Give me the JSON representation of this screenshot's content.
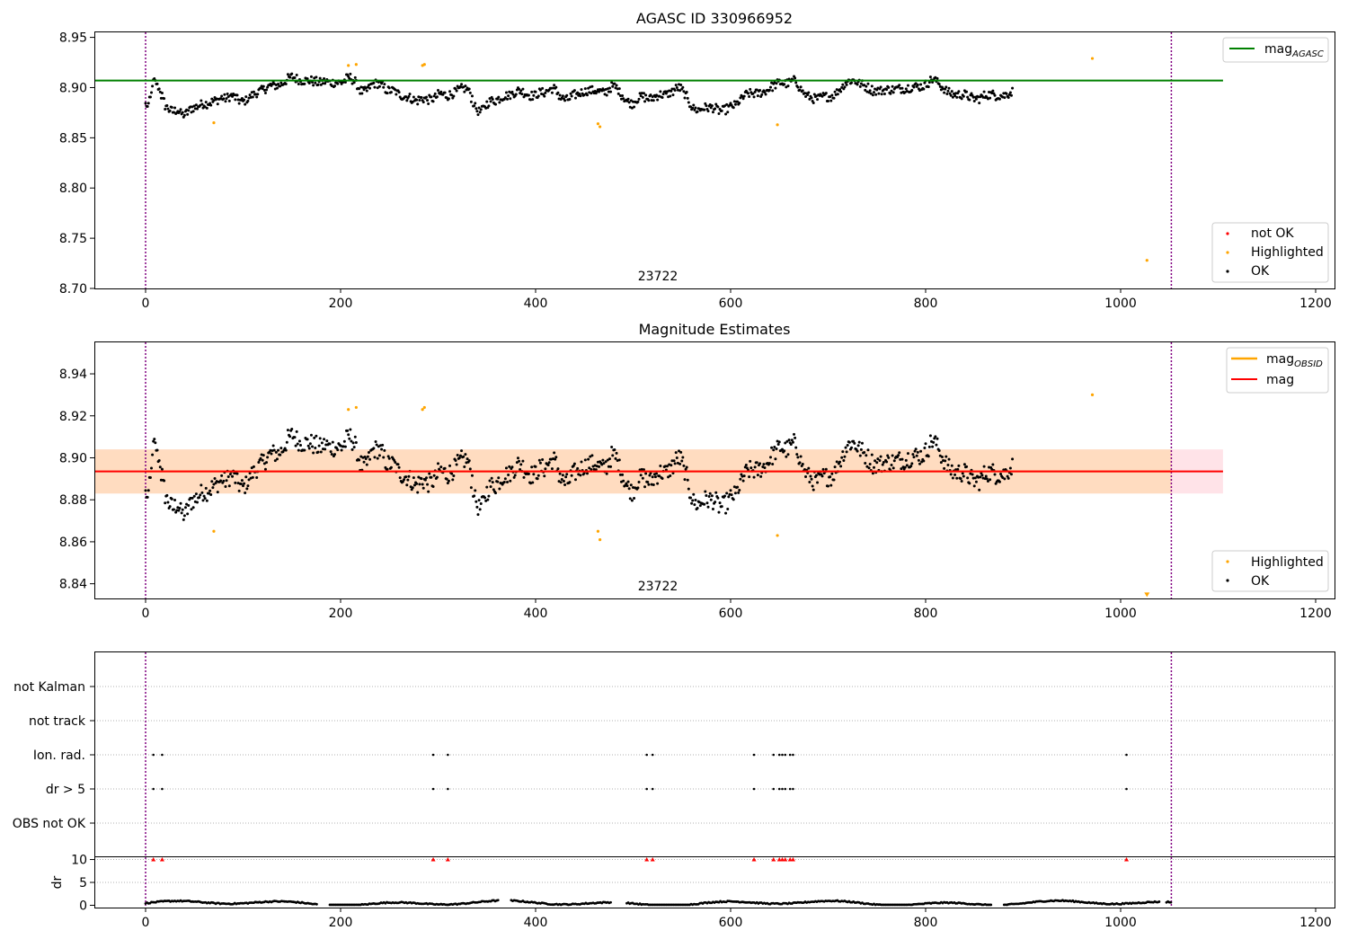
{
  "chart_data": [
    {
      "type": "scatter",
      "title": "AGASC ID 330966952",
      "xlim": [
        -53,
        1100
      ],
      "ylim": [
        8.7,
        8.955
      ],
      "x_ticks": [
        0,
        200,
        400,
        600,
        800,
        1000,
        1200
      ],
      "y_ticks": [
        8.7,
        8.75,
        8.8,
        8.85,
        8.9,
        8.95
      ],
      "x_tick_labels": [
        "0",
        "200",
        "400",
        "600",
        "800",
        "1000",
        "1200"
      ],
      "y_tick_labels": [
        "8.70",
        "8.75",
        "8.80",
        "8.85",
        "8.90",
        "8.95"
      ],
      "obsid_label": "23722",
      "obsid_label_x": 525,
      "vlines_x": [
        0,
        1052
      ],
      "hline": {
        "name": "mag_AGASC",
        "y": 8.907,
        "x_range": [
          -53,
          1105
        ],
        "color": "#008000"
      },
      "legend_top": [
        {
          "label": "mag",
          "sub": "AGASC",
          "color": "#008000"
        }
      ],
      "legend_bottom": [
        {
          "label": "not OK",
          "color": "#ff0000"
        },
        {
          "label": "Highlighted",
          "color": "#ffa500"
        },
        {
          "label": "OK",
          "color": "#000000"
        }
      ],
      "ok_series": {
        "name": "OK",
        "x_start": 0,
        "x_step": 2,
        "y": [
          8.883,
          8.88,
          8.889,
          8.898,
          8.906,
          8.905,
          8.901,
          8.898,
          8.892,
          8.886,
          8.882,
          8.88,
          8.878,
          8.877,
          8.876,
          8.877,
          8.878,
          8.876,
          8.874,
          8.873,
          8.873,
          8.875,
          8.877,
          8.879,
          8.88,
          8.88,
          8.881,
          8.882,
          8.883,
          8.884,
          8.884,
          8.884,
          8.885,
          8.885,
          8.886,
          8.887,
          8.887,
          8.888,
          8.889,
          8.89,
          8.889,
          8.889,
          8.89,
          8.891,
          8.892,
          8.891,
          8.89,
          8.888,
          8.887,
          8.886,
          8.886,
          8.887,
          8.889,
          8.89,
          8.892,
          8.893,
          8.894,
          8.895,
          8.896,
          8.897,
          8.898,
          8.899,
          8.9,
          8.901,
          8.902,
          8.902,
          8.902,
          8.902,
          8.902,
          8.903,
          8.904,
          8.906,
          8.907,
          8.909,
          8.91,
          8.911,
          8.91,
          8.909,
          8.908,
          8.907,
          8.907,
          8.907,
          8.907,
          8.907,
          8.907,
          8.907,
          8.906,
          8.906,
          8.905,
          8.905,
          8.905,
          8.906,
          8.906,
          8.906,
          8.905,
          8.905,
          8.905,
          8.905,
          8.905,
          8.905,
          8.905,
          8.906,
          8.907,
          8.909,
          8.91,
          8.91,
          8.908,
          8.906,
          8.903,
          8.9,
          8.897,
          8.896,
          8.896,
          8.897,
          8.899,
          8.901,
          8.903,
          8.904,
          8.904,
          8.904,
          8.903,
          8.902,
          8.9,
          8.898,
          8.897,
          8.897,
          8.897,
          8.897,
          8.896,
          8.894,
          8.893,
          8.892,
          8.891,
          8.891,
          8.891,
          8.89,
          8.889,
          8.888,
          8.887,
          8.887,
          8.888,
          8.889,
          8.889,
          8.889,
          8.888,
          8.888,
          8.888,
          8.889,
          8.89,
          8.891,
          8.893,
          8.894,
          8.893,
          8.893,
          8.892,
          8.892,
          8.893,
          8.894,
          8.895,
          8.896,
          8.897,
          8.898,
          8.899,
          8.899,
          8.899,
          8.898,
          8.895,
          8.89,
          8.885,
          8.88,
          8.877,
          8.876,
          8.877,
          8.879,
          8.882,
          8.884,
          8.886,
          8.887,
          8.887,
          8.887,
          8.888,
          8.889,
          8.89,
          8.891,
          8.892,
          8.892,
          8.892,
          8.893,
          8.894,
          8.895,
          8.896,
          8.897,
          8.897,
          8.896,
          8.895,
          8.894,
          8.893,
          8.892,
          8.892,
          8.892,
          8.893,
          8.894,
          8.895,
          8.895,
          8.895,
          8.896,
          8.897,
          8.898,
          8.899,
          8.899,
          8.897,
          8.895,
          8.892,
          8.89,
          8.889,
          8.888,
          8.888,
          8.889,
          8.891,
          8.892,
          8.893,
          8.893,
          8.894,
          8.895,
          8.896,
          8.896,
          8.897,
          8.897,
          8.897,
          8.897,
          8.897,
          8.897,
          8.896,
          8.896,
          8.895,
          8.895,
          8.896,
          8.898,
          8.9,
          8.901,
          8.901,
          8.9,
          8.898,
          8.895,
          8.893,
          8.89,
          8.888,
          8.886,
          8.885,
          8.884,
          8.885,
          8.887,
          8.889,
          8.89,
          8.891,
          8.891,
          8.89,
          8.889,
          8.889,
          8.889,
          8.89,
          8.891,
          8.892,
          8.893,
          8.893,
          8.893,
          8.893,
          8.893,
          8.894,
          8.895,
          8.896,
          8.898,
          8.899,
          8.9,
          8.899,
          8.897,
          8.894,
          8.891,
          8.887,
          8.884,
          8.881,
          8.879,
          8.878,
          8.878,
          8.878,
          8.879,
          8.88,
          8.88,
          8.88,
          8.88,
          8.88,
          8.88,
          8.879,
          8.878,
          8.877,
          8.877,
          8.877,
          8.878,
          8.879,
          8.88,
          8.881,
          8.882,
          8.882,
          8.884,
          8.886,
          8.888,
          8.89,
          8.892,
          8.893,
          8.894,
          8.894,
          8.894,
          8.894,
          8.894,
          8.894,
          8.895,
          8.895,
          8.896,
          8.897,
          8.898,
          8.9,
          8.901,
          8.902,
          8.903,
          8.904,
          8.905,
          8.905,
          8.904,
          8.904,
          8.904,
          8.905,
          8.906,
          8.907,
          8.906,
          8.904,
          8.901,
          8.898,
          8.895,
          8.893,
          8.892,
          8.891,
          8.89,
          8.889,
          8.889,
          8.889,
          8.889,
          8.89,
          8.891,
          8.891,
          8.891,
          8.891,
          8.891,
          8.892,
          8.893,
          8.895,
          8.897,
          8.899,
          8.901,
          8.903,
          8.905,
          8.906,
          8.907,
          8.907,
          8.907,
          8.906,
          8.905,
          8.904,
          8.903,
          8.902,
          8.901,
          8.9,
          8.899,
          8.898,
          8.897,
          8.897,
          8.897,
          8.897,
          8.897,
          8.897,
          8.898,
          8.898,
          8.898,
          8.898,
          8.898,
          8.898,
          8.899,
          8.899,
          8.899,
          8.899,
          8.899,
          8.899,
          8.9,
          8.9,
          8.901,
          8.901,
          8.901,
          8.901,
          8.901,
          8.901,
          8.902,
          8.903,
          8.905,
          8.907,
          8.908,
          8.908,
          8.907,
          8.905,
          8.903,
          8.901,
          8.899,
          8.897,
          8.896,
          8.895,
          8.894,
          8.893,
          8.893,
          8.893,
          8.893,
          8.893,
          8.893,
          8.893,
          8.892,
          8.891,
          8.89,
          8.889,
          8.889,
          8.889,
          8.889,
          8.89,
          8.891,
          8.892,
          8.893,
          8.893,
          8.893,
          8.893,
          8.893,
          8.892,
          8.892,
          8.892,
          8.892,
          8.892,
          8.893,
          8.894,
          8.895,
          8.896
        ],
        "jitter": 0.0045,
        "color": "#000000"
      },
      "highlighted": {
        "name": "Highlighted",
        "x": [
          70,
          208,
          216,
          284,
          286,
          464,
          466,
          648,
          971,
          1027
        ],
        "y": [
          8.865,
          8.922,
          8.923,
          8.922,
          8.923,
          8.864,
          8.861,
          8.863,
          8.929,
          8.728
        ],
        "color": "#ffa500"
      },
      "not_ok": {
        "name": "not OK",
        "x": [],
        "y": [],
        "color": "#ff0000"
      }
    },
    {
      "type": "scatter",
      "title": "Magnitude Estimates",
      "xlim": [
        -53,
        1100
      ],
      "ylim": [
        8.833,
        8.955
      ],
      "x_ticks": [
        0,
        200,
        400,
        600,
        800,
        1000,
        1200
      ],
      "y_ticks": [
        8.84,
        8.86,
        8.88,
        8.9,
        8.92,
        8.94
      ],
      "x_tick_labels": [
        "0",
        "200",
        "400",
        "600",
        "800",
        "1000",
        "1200"
      ],
      "y_tick_labels": [
        "8.84",
        "8.86",
        "8.88",
        "8.90",
        "8.92",
        "8.94"
      ],
      "obsid_label": "23722",
      "obsid_label_x": 525,
      "vlines_x": [
        0,
        1052
      ],
      "mag_line": {
        "name": "mag",
        "y": 8.8935,
        "color": "#ff0000"
      },
      "mag_obsid_line": {
        "name": "mag_OBSID",
        "y": 8.8935,
        "color": "#ffa500"
      },
      "band_outer": {
        "y0": 8.883,
        "y1": 8.904,
        "x_range": [
          -53,
          1105
        ],
        "color": "#ffc0cb"
      },
      "band_inner": {
        "y0": 8.883,
        "y1": 8.904,
        "x_range": [
          -53,
          1052
        ],
        "color": "#ffdab9"
      },
      "legend_top": [
        {
          "label": "mag",
          "sub": "OBSID",
          "color": "#ffa500"
        },
        {
          "label": "mag",
          "sub": "",
          "color": "#ff0000"
        }
      ],
      "legend_bottom": [
        {
          "label": "Highlighted",
          "color": "#ffa500"
        },
        {
          "label": "OK",
          "color": "#000000"
        }
      ],
      "highlighted": {
        "name": "Highlighted",
        "x": [
          70,
          208,
          216,
          284,
          286,
          464,
          466,
          648,
          971
        ],
        "y": [
          8.865,
          8.923,
          8.924,
          8.923,
          8.924,
          8.865,
          8.861,
          8.863,
          8.93
        ],
        "color": "#ffa500"
      },
      "offscale_marker": {
        "x": 1027,
        "y": 8.835,
        "color": "#ffa500"
      }
    },
    {
      "type": "scatter",
      "title": "",
      "xlim": [
        -53,
        1100
      ],
      "categories": [
        "OBS not OK",
        "dr > 5",
        "Ion. rad.",
        "not track",
        "not Kalman"
      ],
      "flag_x": [
        8,
        17,
        295,
        310,
        514,
        520,
        624,
        644,
        650,
        653,
        656,
        661,
        664,
        1006
      ],
      "flag_rows": [
        "dr > 5",
        "Ion. rad."
      ],
      "vlines_x": [
        0,
        1052
      ]
    },
    {
      "type": "line",
      "title": "",
      "ylabel": "dr",
      "xlim": [
        -53,
        1100
      ],
      "ylim": [
        -0.5,
        10.5
      ],
      "y_ticks": [
        0,
        5,
        10
      ],
      "y_tick_labels": [
        "0",
        "5",
        "10"
      ],
      "x_ticks": [
        0,
        200,
        400,
        600,
        800,
        1000,
        1200
      ],
      "x_tick_labels": [
        "0",
        "200",
        "400",
        "600",
        "800",
        "1000",
        "1200"
      ],
      "gap_ranges": [
        [
          176,
          188
        ],
        [
          362,
          374
        ],
        [
          478,
          492
        ],
        [
          868,
          880
        ],
        [
          1040,
          1046
        ]
      ],
      "dr_cap_markers_x": [
        8,
        17,
        295,
        310,
        514,
        520,
        624,
        644,
        650,
        653,
        656,
        661,
        664,
        1006
      ],
      "dr_cap_value": 10,
      "vlines_x": [
        0,
        1052
      ]
    }
  ]
}
